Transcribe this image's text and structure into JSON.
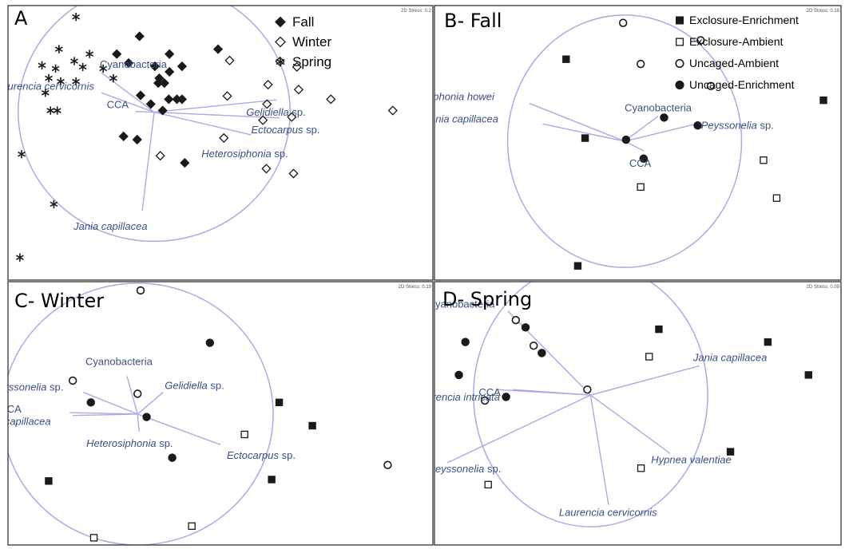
{
  "chart_data": [
    {
      "type": "scatter",
      "panel_label": "A",
      "stress": "2D Stress: 0.2",
      "legend": [
        "Fall",
        "Winter",
        "Spring"
      ],
      "series": [
        {
          "name": "Fall",
          "marker": "diamond-filled",
          "points": [
            [
              -1.43,
              2.35
            ],
            [
              -2.1,
              1.8
            ],
            [
              -0.55,
              1.8
            ],
            [
              0.88,
              1.95
            ],
            [
              -1.75,
              1.52
            ],
            [
              -0.98,
              1.42
            ],
            [
              -0.18,
              1.42
            ],
            [
              -0.55,
              1.25
            ],
            [
              -0.85,
              1.05
            ],
            [
              -0.88,
              0.9
            ],
            [
              -0.7,
              0.9
            ],
            [
              -0.33,
              0.4
            ],
            [
              -1.4,
              0.52
            ],
            [
              -0.57,
              0.4
            ],
            [
              -0.18,
              0.4
            ],
            [
              -1.1,
              0.25
            ],
            [
              -0.75,
              0.05
            ],
            [
              -1.9,
              -0.75
            ],
            [
              -1.5,
              -0.85
            ],
            [
              -0.1,
              -1.57
            ]
          ]
        },
        {
          "name": "Winter",
          "marker": "diamond-open",
          "points": [
            [
              1.22,
              1.6
            ],
            [
              2.7,
              1.57
            ],
            [
              3.2,
              1.4
            ],
            [
              2.35,
              0.85
            ],
            [
              3.25,
              0.7
            ],
            [
              1.15,
              0.5
            ],
            [
              2.32,
              0.25
            ],
            [
              4.2,
              0.4
            ],
            [
              3.05,
              -0.15
            ],
            [
              2.2,
              -0.25
            ],
            [
              1.05,
              -0.8
            ],
            [
              -0.82,
              -1.35
            ],
            [
              2.3,
              -1.75
            ],
            [
              3.1,
              -1.9
            ],
            [
              6.02,
              0.05
            ]
          ]
        },
        {
          "name": "Spring",
          "marker": "asterisk",
          "points": [
            [
              -3.3,
              2.95
            ],
            [
              -3.8,
              1.95
            ],
            [
              -2.9,
              1.8
            ],
            [
              -3.35,
              1.58
            ],
            [
              -4.3,
              1.45
            ],
            [
              -3.9,
              1.35
            ],
            [
              -3.1,
              1.4
            ],
            [
              -4.1,
              1.05
            ],
            [
              -3.75,
              0.95
            ],
            [
              -3.3,
              0.95
            ],
            [
              -4.2,
              0.6
            ],
            [
              -2.5,
              1.35
            ],
            [
              -2.2,
              1.05
            ],
            [
              -4.05,
              0.05
            ],
            [
              -3.85,
              0.05
            ],
            [
              -4.9,
              -1.3
            ],
            [
              -3.95,
              -2.85
            ],
            [
              -4.95,
              -4.5
            ]
          ]
        }
      ],
      "vectors": [
        {
          "label": "Cyanobacteria",
          "italic": false,
          "end": [
            -2.55,
            1.22
          ]
        },
        {
          "label": "Laurencia cervicornis",
          "italic": true,
          "end": [
            -2.55,
            0.6
          ]
        },
        {
          "label": "CCA",
          "italic": false,
          "end": [
            -1.55,
            0.02
          ]
        },
        {
          "label": "Gelidiella sp.",
          "italic": true,
          "end": [
            2.6,
            0.38
          ],
          "genus": "Gelidiella"
        },
        {
          "label": "Ectocarpus sp.",
          "italic": true,
          "end": [
            2.7,
            -0.18
          ],
          "genus": "Ectocarpus"
        },
        {
          "label": "Heterosiphonia sp.",
          "italic": true,
          "end": [
            1.85,
            -0.7
          ],
          "genus": "Heterosiphonia"
        },
        {
          "label": "Jania capillacea",
          "italic": true,
          "end": [
            -1.35,
            -3.05
          ]
        }
      ],
      "circle": {
        "center": [
          -1.0,
          0.0
        ],
        "radius": 4.0
      },
      "xlim": [
        -5.3,
        7.2
      ],
      "ylim": [
        -5.2,
        3.3
      ],
      "xlabel": "",
      "ylabel": "",
      "grid": false
    },
    {
      "type": "scatter",
      "panel_label": "B- Fall",
      "stress": "2D Stress: 0.18",
      "legend": [
        "Exclosure-Enrichment",
        "Exclosure-Ambient",
        "Uncaged-Ambient",
        "Uncaged-Enrichment"
      ],
      "series": [
        {
          "name": "Exclosure-Enrichment",
          "marker": "square-filled",
          "points": [
            [
              -2.0,
              2.6
            ],
            [
              -1.35,
              0.1
            ],
            [
              6.8,
              1.3
            ],
            [
              -1.6,
              -3.95
            ]
          ]
        },
        {
          "name": "Exclosure-Ambient",
          "marker": "square-open",
          "points": [
            [
              0.55,
              -1.45
            ],
            [
              4.75,
              -0.6
            ],
            [
              5.2,
              -1.8
            ]
          ]
        },
        {
          "name": "Uncaged-Ambient",
          "marker": "circle-open",
          "points": [
            [
              -0.05,
              3.75
            ],
            [
              2.6,
              3.2
            ],
            [
              0.55,
              2.45
            ],
            [
              2.95,
              1.75
            ]
          ]
        },
        {
          "name": "Uncaged-Enrichment",
          "marker": "circle-filled",
          "points": [
            [
              0.05,
              0.05
            ],
            [
              1.35,
              0.75
            ],
            [
              2.5,
              0.5
            ],
            [
              0.65,
              -0.55
            ]
          ]
        }
      ],
      "vectors": [
        {
          "label": "Neosiphonia howei",
          "italic": true,
          "end": [
            -3.25,
            1.2
          ]
        },
        {
          "label": "Jania capillacea",
          "italic": true,
          "end": [
            -2.8,
            0.55
          ]
        },
        {
          "label": "Cyanobacteria",
          "italic": false,
          "end": [
            1.15,
            0.8
          ]
        },
        {
          "label": "Peyssonelia sp.",
          "italic": true,
          "end": [
            2.45,
            0.55
          ],
          "genus": "Peyssonelia"
        },
        {
          "label": "CCA",
          "italic": false,
          "end": [
            0.65,
            -0.3
          ]
        }
      ],
      "circle": {
        "center": [
          0.0,
          0.0
        ],
        "radius": 4.0
      },
      "xlim": [
        -6.5,
        7.4
      ],
      "ylim": [
        -4.4,
        4.3
      ],
      "xlabel": "",
      "ylabel": "",
      "grid": false
    },
    {
      "type": "scatter",
      "panel_label": "C- Winter",
      "stress": "2D Stress: 0.19",
      "legend": [],
      "series": [
        {
          "name": "Exclosure-Enrichment",
          "marker": "square-filled",
          "points": [
            [
              5.2,
              0.4
            ],
            [
              6.3,
              -0.4
            ],
            [
              4.95,
              -2.25
            ],
            [
              -2.45,
              -2.3
            ]
          ]
        },
        {
          "name": "Exclosure-Ambient",
          "marker": "square-open",
          "points": [
            [
              4.05,
              -0.7
            ],
            [
              2.3,
              -3.85
            ],
            [
              -0.95,
              -4.25
            ]
          ]
        },
        {
          "name": "Uncaged-Ambient",
          "marker": "circle-open",
          "points": [
            [
              0.6,
              4.25
            ],
            [
              -1.65,
              1.15
            ],
            [
              0.5,
              0.7
            ],
            [
              8.8,
              -1.75
            ]
          ]
        },
        {
          "name": "Uncaged-Enrichment",
          "marker": "circle-filled",
          "points": [
            [
              2.9,
              2.45
            ],
            [
              -1.05,
              0.4
            ],
            [
              0.8,
              -0.1
            ],
            [
              1.65,
              -1.5
            ]
          ]
        }
      ],
      "vectors": [
        {
          "label": "Cyanobacteria",
          "italic": false,
          "end": [
            0.15,
            1.3
          ]
        },
        {
          "label": "Peyssonelia sp.",
          "italic": true,
          "end": [
            -1.3,
            0.75
          ],
          "genus": "Peyssonelia"
        },
        {
          "label": "Gelidiella sp.",
          "italic": true,
          "end": [
            1.35,
            0.75
          ],
          "genus": "Gelidiella"
        },
        {
          "label": "CCA",
          "italic": false,
          "end": [
            -1.75,
            0.05
          ]
        },
        {
          "label": "Jania capillacea",
          "italic": true,
          "end": [
            -1.65,
            -0.05
          ]
        },
        {
          "label": "Heterosiphonia sp.",
          "italic": true,
          "end": [
            0.55,
            -0.6
          ],
          "genus": "Heterosiphonia"
        },
        {
          "label": "Ectocarpus sp.",
          "italic": true,
          "end": [
            3.25,
            -1.05
          ],
          "genus": "Ectocarpus"
        }
      ],
      "circle": {
        "center": [
          0.5,
          0.0
        ],
        "radius": 4.5
      },
      "xlim": [
        -3.8,
        10.3
      ],
      "ylim": [
        -4.5,
        4.55
      ],
      "xlabel": "",
      "ylabel": "",
      "grid": false
    },
    {
      "type": "scatter",
      "panel_label": "D- Spring",
      "stress": "2D Stress: 0.09",
      "legend": [],
      "series": [
        {
          "name": "Exclosure-Enrichment",
          "marker": "square-filled",
          "points": [
            [
              2.1,
              1.8
            ],
            [
              5.45,
              1.45
            ],
            [
              6.7,
              0.55
            ],
            [
              4.3,
              -1.55
            ]
          ]
        },
        {
          "name": "Exclosure-Ambient",
          "marker": "square-open",
          "points": [
            [
              1.8,
              1.05
            ],
            [
              1.55,
              -2.0
            ],
            [
              -3.15,
              -2.45
            ]
          ]
        },
        {
          "name": "Uncaged-Ambient",
          "marker": "circle-open",
          "points": [
            [
              -2.3,
              2.05
            ],
            [
              -1.75,
              1.35
            ],
            [
              -0.1,
              0.15
            ],
            [
              -3.25,
              -0.15
            ]
          ]
        },
        {
          "name": "Uncaged-Enrichment",
          "marker": "circle-filled",
          "points": [
            [
              -2.0,
              1.85
            ],
            [
              -3.85,
              1.45
            ],
            [
              -1.5,
              1.15
            ],
            [
              -4.05,
              0.55
            ],
            [
              -2.6,
              -0.05
            ]
          ]
        }
      ],
      "vectors": [
        {
          "label": "Cyanobacteria",
          "italic": false,
          "end": [
            -2.55,
            2.3
          ]
        },
        {
          "label": "CCA",
          "italic": false,
          "end": [
            -2.9,
            0.15
          ]
        },
        {
          "label": "Laurencia intricata",
          "italic": true,
          "end": [
            -2.4,
            0.15
          ]
        },
        {
          "label": "Jania capillacea",
          "italic": true,
          "end": [
            3.35,
            0.8
          ]
        },
        {
          "label": "Peyssonelia sp.",
          "italic": true,
          "end": [
            -4.4,
            -1.85
          ],
          "genus": "Peyssonelia"
        },
        {
          "label": "Hypnea valentiae",
          "italic": true,
          "end": [
            2.45,
            -1.6
          ]
        },
        {
          "label": "Laurencia cervicornis",
          "italic": true,
          "end": [
            0.55,
            -3.0
          ]
        }
      ],
      "circle": {
        "center": [
          0.0,
          0.0
        ],
        "radius": 3.6
      },
      "xlim": [
        -4.8,
        7.7
      ],
      "ylim": [
        -4.1,
        3.1
      ],
      "xlabel": "",
      "ylabel": "",
      "grid": false
    }
  ],
  "colors": {
    "vector": "#a9abe6",
    "label": "#3a4f86",
    "frame": "#333333",
    "circle": "#a9abe6",
    "marker": "#1a1a1a"
  }
}
